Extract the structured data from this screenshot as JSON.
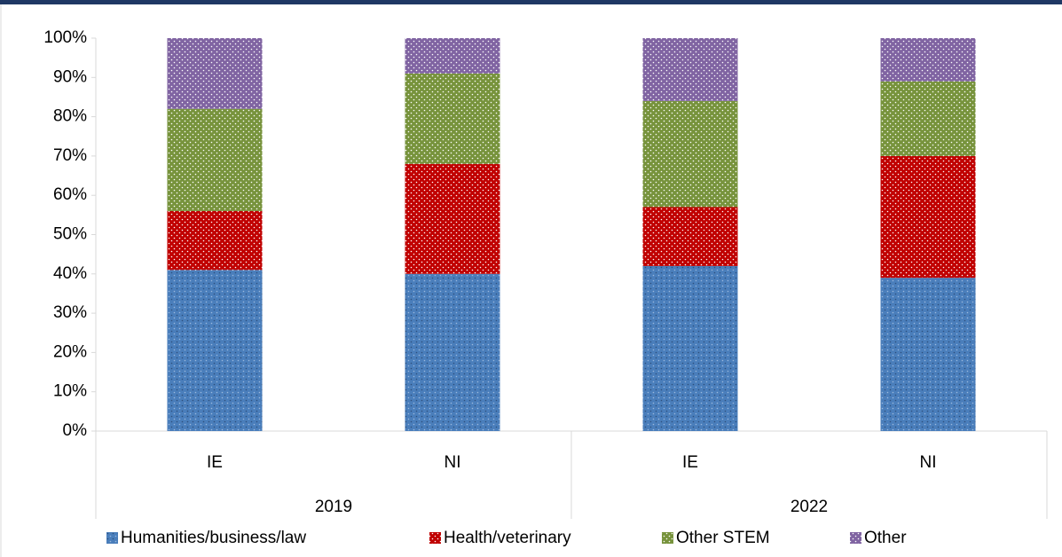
{
  "chart_data": {
    "type": "stacked_bar",
    "categories": [
      "IE",
      "NI",
      "IE",
      "NI"
    ],
    "group_labels": [
      "2019",
      "2022"
    ],
    "series": [
      {
        "name": "Humanities/business/law",
        "color": "#4a7ebb",
        "values": [
          41,
          40,
          42,
          39
        ]
      },
      {
        "name": "Health/veterinary",
        "color": "#c00000",
        "values": [
          15,
          28,
          15,
          31
        ]
      },
      {
        "name": "Other STEM",
        "color": "#77933c",
        "values": [
          26,
          23,
          27,
          19
        ]
      },
      {
        "name": "Other",
        "color": "#8064a2",
        "values": [
          18,
          9,
          16,
          11
        ]
      }
    ],
    "ylim": [
      0,
      100
    ],
    "yticks": [
      {
        "value": 0,
        "label": "0%"
      },
      {
        "value": 10,
        "label": "10%"
      },
      {
        "value": 20,
        "label": "20%"
      },
      {
        "value": 30,
        "label": "30%"
      },
      {
        "value": 40,
        "label": "40%"
      },
      {
        "value": 50,
        "label": "50%"
      },
      {
        "value": 60,
        "label": "60%"
      },
      {
        "value": 70,
        "label": "70%"
      },
      {
        "value": 80,
        "label": "80%"
      },
      {
        "value": 90,
        "label": "90%"
      },
      {
        "value": 100,
        "label": "100%"
      }
    ],
    "legend": "bottom"
  }
}
